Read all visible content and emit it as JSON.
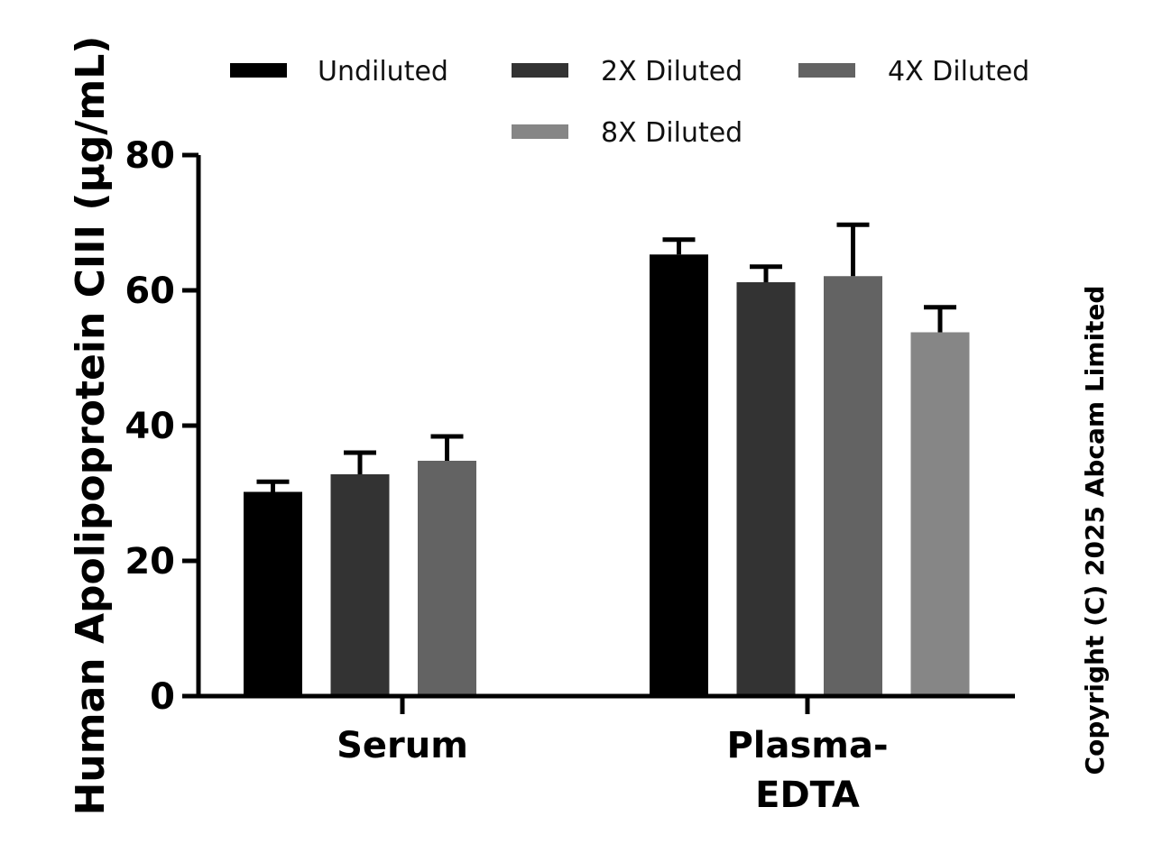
{
  "chart_data": {
    "type": "bar",
    "ylabel": "Human Apolipoprotein CIII (µg/mL)",
    "ylim": [
      0,
      80
    ],
    "yticks": [
      "0",
      "20",
      "40",
      "60",
      "80"
    ],
    "grid": false,
    "legend_placement": "top",
    "categories": [
      [
        "Serum"
      ],
      [
        "Plasma-",
        "EDTA"
      ]
    ],
    "series": [
      {
        "name": "Undiluted",
        "color": "#000000",
        "values": [
          30.2,
          65.3
        ],
        "errors": [
          1.5,
          2.2
        ]
      },
      {
        "name": "2X Diluted",
        "color": "#333333",
        "values": [
          32.8,
          61.2
        ],
        "errors": [
          3.2,
          2.3
        ]
      },
      {
        "name": "4X Diluted",
        "color": "#636363",
        "values": [
          34.8,
          62.1
        ],
        "errors": [
          3.6,
          7.6
        ]
      },
      {
        "name": "8X Diluted",
        "color": "#868686",
        "values": [
          null,
          53.8
        ],
        "errors": [
          null,
          3.7
        ]
      }
    ]
  },
  "copyright": "Copyright (C) 2025 Abcam Limited"
}
